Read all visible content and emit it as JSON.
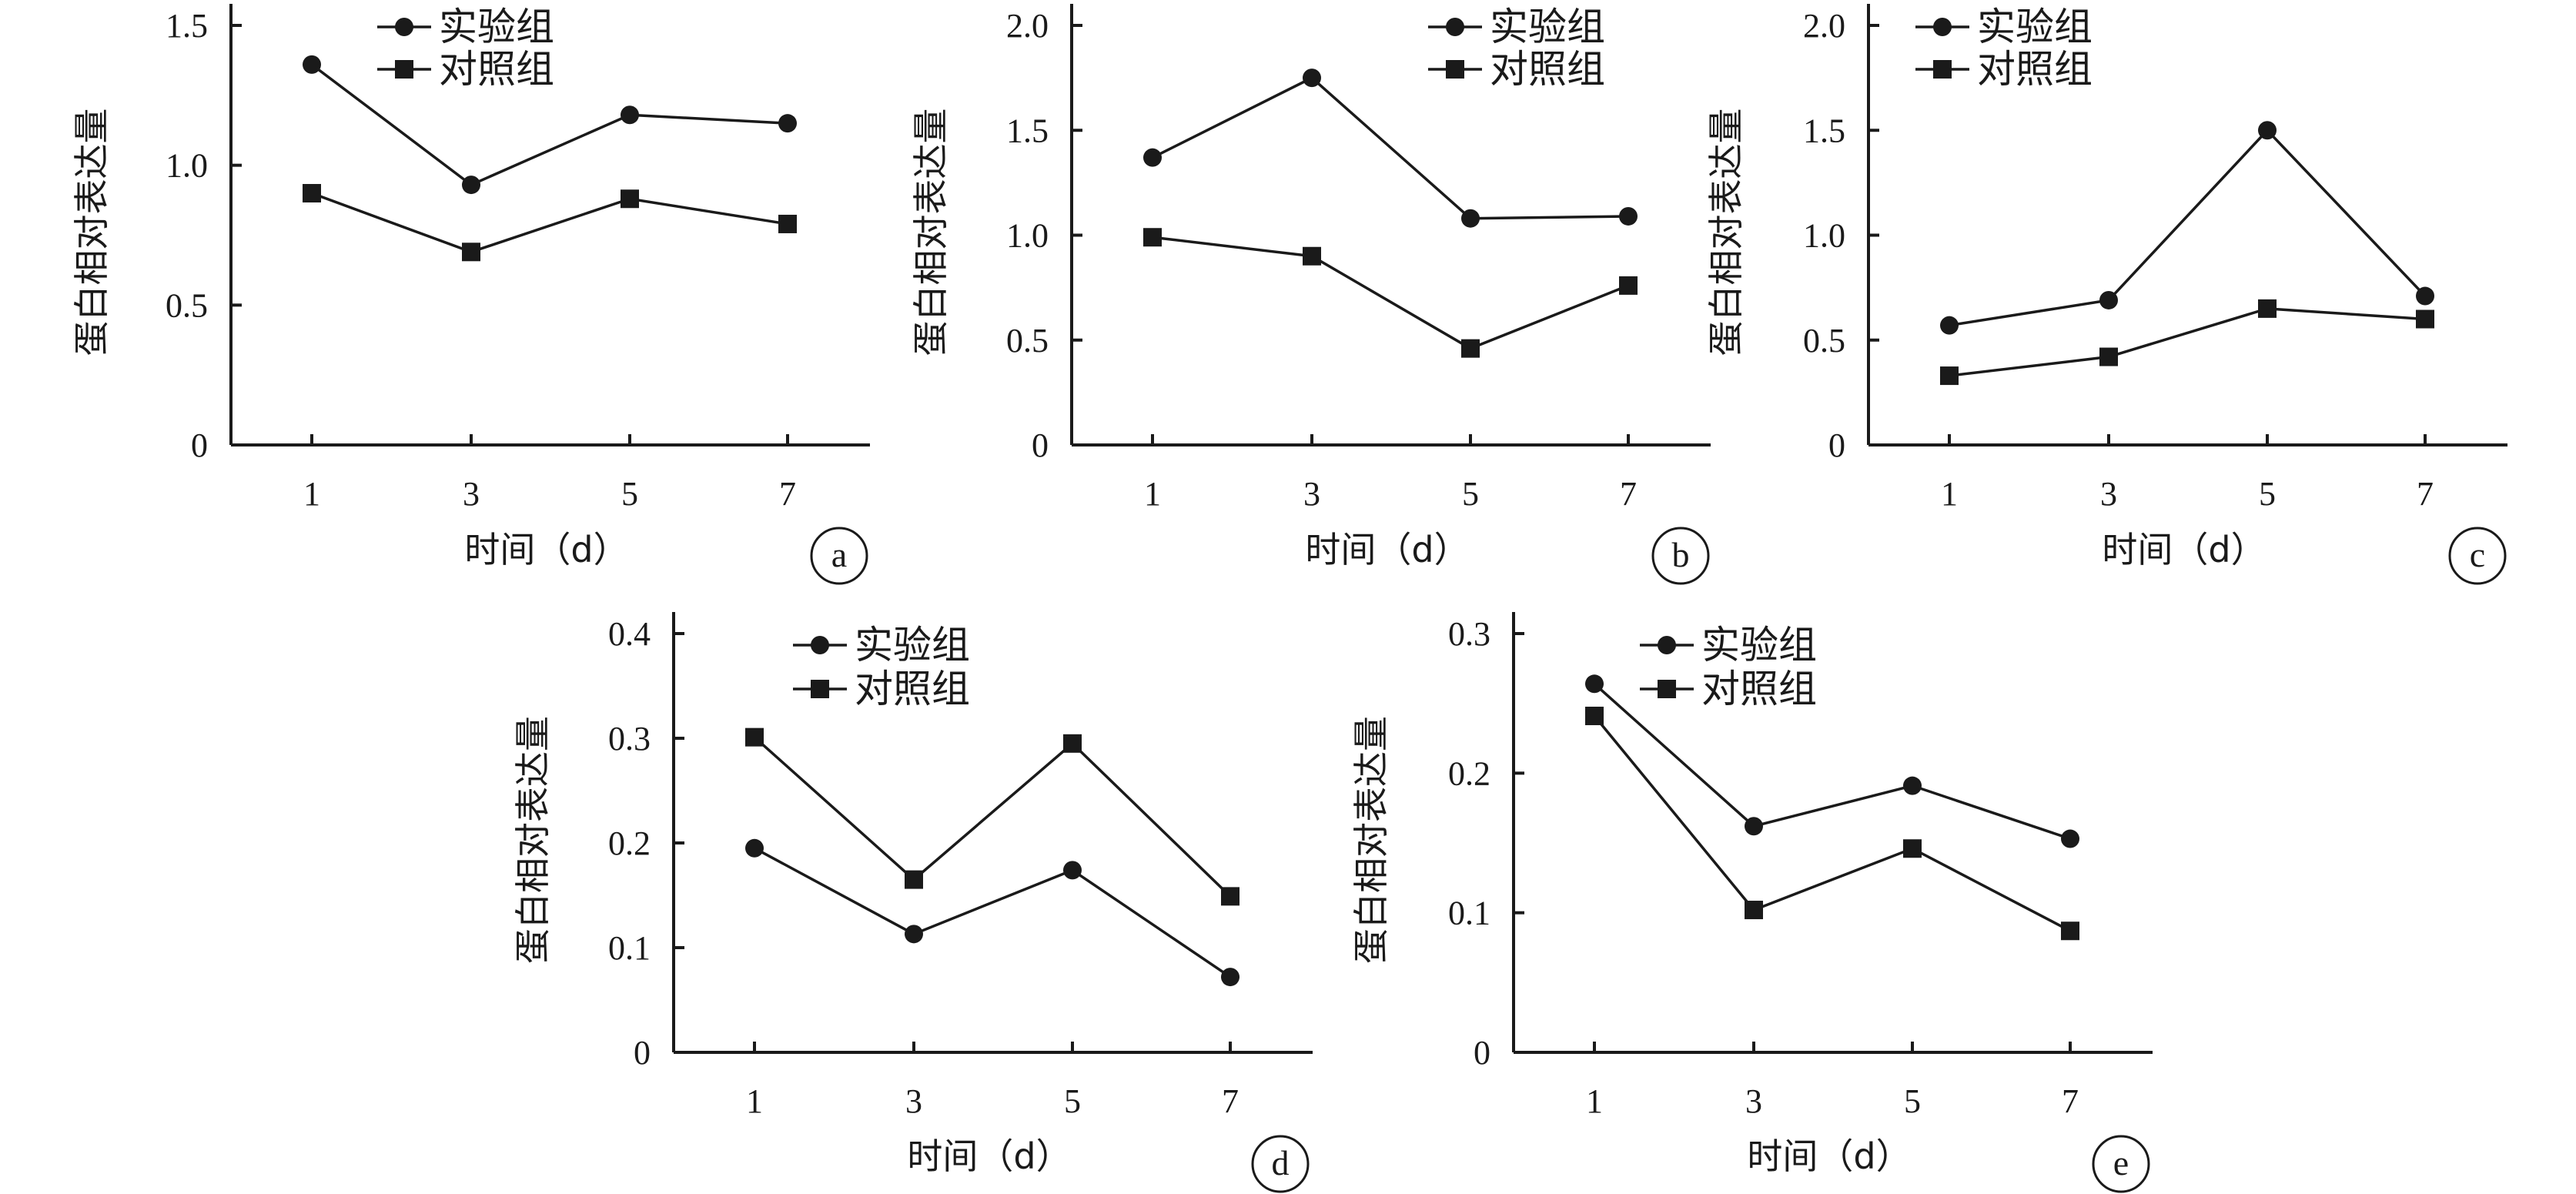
{
  "chart_data": [
    {
      "type": "line",
      "panel_label": "a",
      "xlabel": "时间（d）",
      "ylabel": "蛋白相对表达量",
      "x": [
        1,
        3,
        5,
        7
      ],
      "xticks": [
        "1",
        "3",
        "5",
        "7"
      ],
      "ylim": [
        0,
        1.5
      ],
      "yticks": [
        "0",
        "0.5",
        "1.0",
        "1.5"
      ],
      "series": [
        {
          "name": "实验组",
          "marker": "circle",
          "values": [
            1.36,
            0.93,
            1.18,
            1.15
          ]
        },
        {
          "name": "对照组",
          "marker": "square",
          "values": [
            0.9,
            0.69,
            0.88,
            0.79
          ]
        }
      ]
    },
    {
      "type": "line",
      "panel_label": "b",
      "xlabel": "时间（d）",
      "ylabel": "蛋白相对表达量",
      "x": [
        1,
        3,
        5,
        7
      ],
      "xticks": [
        "1",
        "3",
        "5",
        "7"
      ],
      "ylim": [
        0,
        2.0
      ],
      "yticks": [
        "0",
        "0.5",
        "1.0",
        "1.5",
        "2.0"
      ],
      "series": [
        {
          "name": "实验组",
          "marker": "circle",
          "values": [
            1.37,
            1.75,
            1.08,
            1.09
          ]
        },
        {
          "name": "对照组",
          "marker": "square",
          "values": [
            0.99,
            0.9,
            0.46,
            0.76
          ]
        }
      ]
    },
    {
      "type": "line",
      "panel_label": "c",
      "xlabel": "时间（d）",
      "ylabel": "蛋白相对表达量",
      "x": [
        1,
        3,
        5,
        7
      ],
      "xticks": [
        "1",
        "3",
        "5",
        "7"
      ],
      "ylim": [
        0,
        2.0
      ],
      "yticks": [
        "0",
        "0.5",
        "1.0",
        "1.5",
        "2.0"
      ],
      "series": [
        {
          "name": "实验组",
          "marker": "circle",
          "values": [
            0.57,
            0.69,
            1.5,
            0.71
          ]
        },
        {
          "name": "对照组",
          "marker": "square",
          "values": [
            0.33,
            0.42,
            0.65,
            0.6
          ]
        }
      ]
    },
    {
      "type": "line",
      "panel_label": "d",
      "xlabel": "时间（d）",
      "ylabel": "蛋白相对表达量",
      "x": [
        1,
        3,
        5,
        7
      ],
      "xticks": [
        "1",
        "3",
        "5",
        "7"
      ],
      "ylim": [
        0,
        0.4
      ],
      "yticks": [
        "0",
        "0.1",
        "0.2",
        "0.3",
        "0.4"
      ],
      "series": [
        {
          "name": "实验组",
          "marker": "circle",
          "values": [
            0.195,
            0.113,
            0.174,
            0.072
          ]
        },
        {
          "name": "对照组",
          "marker": "square",
          "values": [
            0.301,
            0.165,
            0.295,
            0.149
          ]
        }
      ]
    },
    {
      "type": "line",
      "panel_label": "e",
      "xlabel": "时间（d）",
      "ylabel": "蛋白相对表达量",
      "x": [
        1,
        3,
        5,
        7
      ],
      "xticks": [
        "1",
        "3",
        "5",
        "7"
      ],
      "ylim": [
        0,
        0.3
      ],
      "yticks": [
        "0",
        "0.1",
        "0.2",
        "0.3"
      ],
      "series": [
        {
          "name": "实验组",
          "marker": "circle",
          "values": [
            0.264,
            0.162,
            0.191,
            0.153
          ]
        },
        {
          "name": "对照组",
          "marker": "square",
          "values": [
            0.241,
            0.102,
            0.146,
            0.087
          ]
        }
      ]
    }
  ],
  "colors": {
    "ink": "#1a1a1a",
    "background": "#ffffff"
  }
}
